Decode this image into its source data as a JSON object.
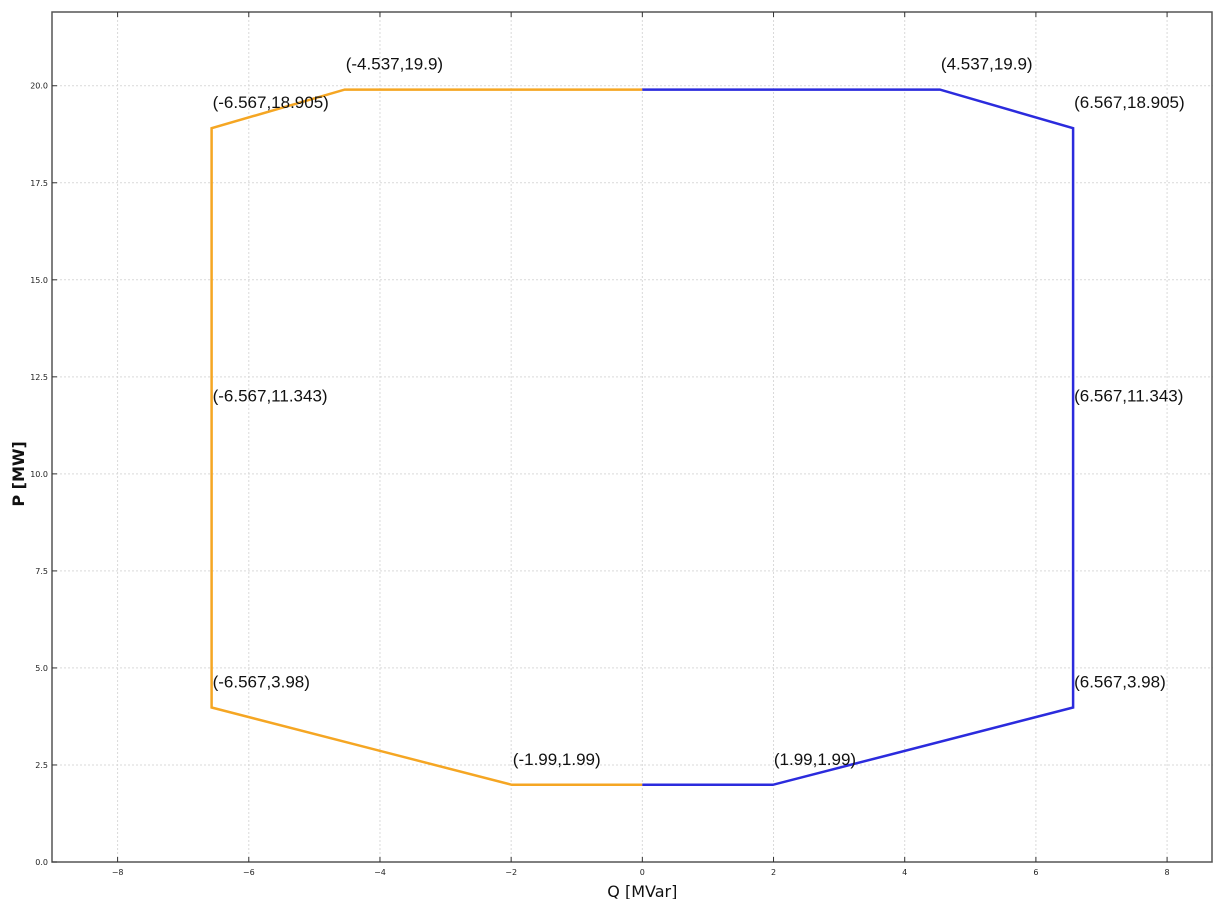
{
  "chart_data": {
    "type": "line",
    "xlabel": "Q [MVar]",
    "ylabel": "P [MW]",
    "xlim": [
      -9,
      8.7
    ],
    "ylim": [
      0,
      21.9
    ],
    "grid": true,
    "x_ticks": [
      -8,
      -6,
      -4,
      -2,
      0,
      2,
      4,
      6,
      8
    ],
    "y_ticks": [
      0.0,
      2.5,
      5.0,
      7.5,
      10.0,
      12.5,
      15.0,
      17.5,
      20.0
    ],
    "x_tick_labels": [
      "−8",
      "−6",
      "−4",
      "−2",
      "0",
      "2",
      "4",
      "6",
      "8"
    ],
    "y_tick_labels": [
      "0.0",
      "2.5",
      "5.0",
      "7.5",
      "10.0",
      "12.5",
      "15.0",
      "17.5",
      "20.0"
    ],
    "series": [
      {
        "color": "#f5a623",
        "x": [
          0,
          -4.537,
          -6.567,
          -6.567,
          -6.567,
          -1.99,
          0
        ],
        "y": [
          19.9,
          19.9,
          18.905,
          11.343,
          3.98,
          1.99,
          1.99
        ]
      },
      {
        "color": "#2b2bdd",
        "x": [
          0,
          4.537,
          6.567,
          6.567,
          6.567,
          1.99,
          0
        ],
        "y": [
          19.9,
          19.9,
          18.905,
          11.343,
          3.98,
          1.99,
          1.99
        ]
      }
    ],
    "annotations": [
      {
        "text": "(-4.537,19.9)",
        "x": -4.537,
        "y": 19.9
      },
      {
        "text": "(4.537,19.9)",
        "x": 4.537,
        "y": 19.9
      },
      {
        "text": "(-6.567,18.905)",
        "x": -6.567,
        "y": 18.905
      },
      {
        "text": "(6.567,18.905)",
        "x": 6.567,
        "y": 18.905
      },
      {
        "text": "(-6.567,11.343)",
        "x": -6.567,
        "y": 11.343
      },
      {
        "text": "(6.567,11.343)",
        "x": 6.567,
        "y": 11.343
      },
      {
        "text": "(-6.567,3.98)",
        "x": -6.567,
        "y": 3.98
      },
      {
        "text": "(6.567,3.98)",
        "x": 6.567,
        "y": 3.98
      },
      {
        "text": "(-1.99,1.99)",
        "x": -1.99,
        "y": 1.99
      },
      {
        "text": "(1.99,1.99)",
        "x": 1.99,
        "y": 1.99
      }
    ]
  }
}
